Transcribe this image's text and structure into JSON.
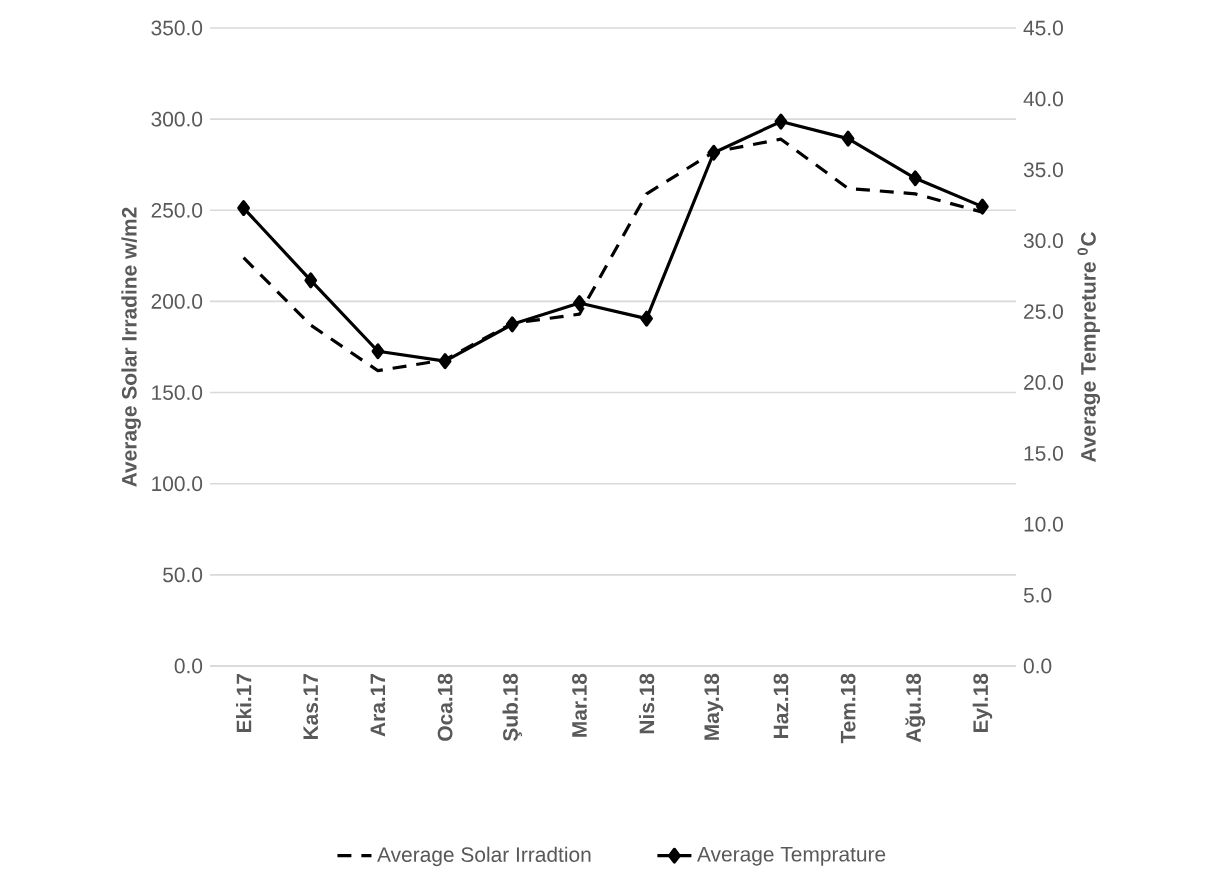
{
  "chart_data": {
    "type": "line",
    "categories": [
      "Eki.17",
      "Kas.17",
      "Ara.17",
      "Oca.18",
      "Şub.18",
      "Mar.18",
      "Nis.18",
      "May.18",
      "Haz.18",
      "Tem.18",
      "Ağu.18",
      "Eyl.18"
    ],
    "series": [
      {
        "name": "Average Solar Irradtion",
        "color": "#000000",
        "line_style": "dashed",
        "marker": "none",
        "values": [
          224,
          187,
          162,
          168,
          188,
          193,
          259,
          282,
          289,
          262,
          259,
          249
        ]
      },
      {
        "name": "Average Temprature",
        "color": "#000000",
        "line_style": "solid",
        "marker": "diamond",
        "axis": "y2",
        "values": [
          32.3,
          27.2,
          22.2,
          21.5,
          24.1,
          25.6,
          24.5,
          36.2,
          38.4,
          37.2,
          34.4,
          32.4
        ]
      }
    ],
    "ylabel": "Average Solar Irradine w/m2",
    "y2label": "Average Tempreture $^{0}$C",
    "ylim": [
      0,
      350
    ],
    "yticks": [
      {
        "value": 0,
        "label": "0.0"
      },
      {
        "value": 50,
        "label": "50.0"
      },
      {
        "value": 100,
        "label": "100.0"
      },
      {
        "value": 150,
        "label": "150.0"
      },
      {
        "value": 200,
        "label": "200.0"
      },
      {
        "value": 250,
        "label": "250.0"
      },
      {
        "value": 300,
        "label": "300.0"
      },
      {
        "value": 350,
        "label": "350.0"
      }
    ],
    "y2lim": [
      0,
      45
    ],
    "y2ticks": [
      {
        "value": 0,
        "label": "0.0"
      },
      {
        "value": 5,
        "label": "5.0"
      },
      {
        "value": 10,
        "label": "10.0"
      },
      {
        "value": 15,
        "label": "15.0"
      },
      {
        "value": 20,
        "label": "20.0"
      },
      {
        "value": 25,
        "label": "25.0"
      },
      {
        "value": 30,
        "label": "30.0"
      },
      {
        "value": 35,
        "label": "35.0"
      },
      {
        "value": 40,
        "label": "40.0"
      },
      {
        "value": 45,
        "label": "45.0"
      }
    ],
    "grid": "y",
    "legend": "bottom"
  }
}
